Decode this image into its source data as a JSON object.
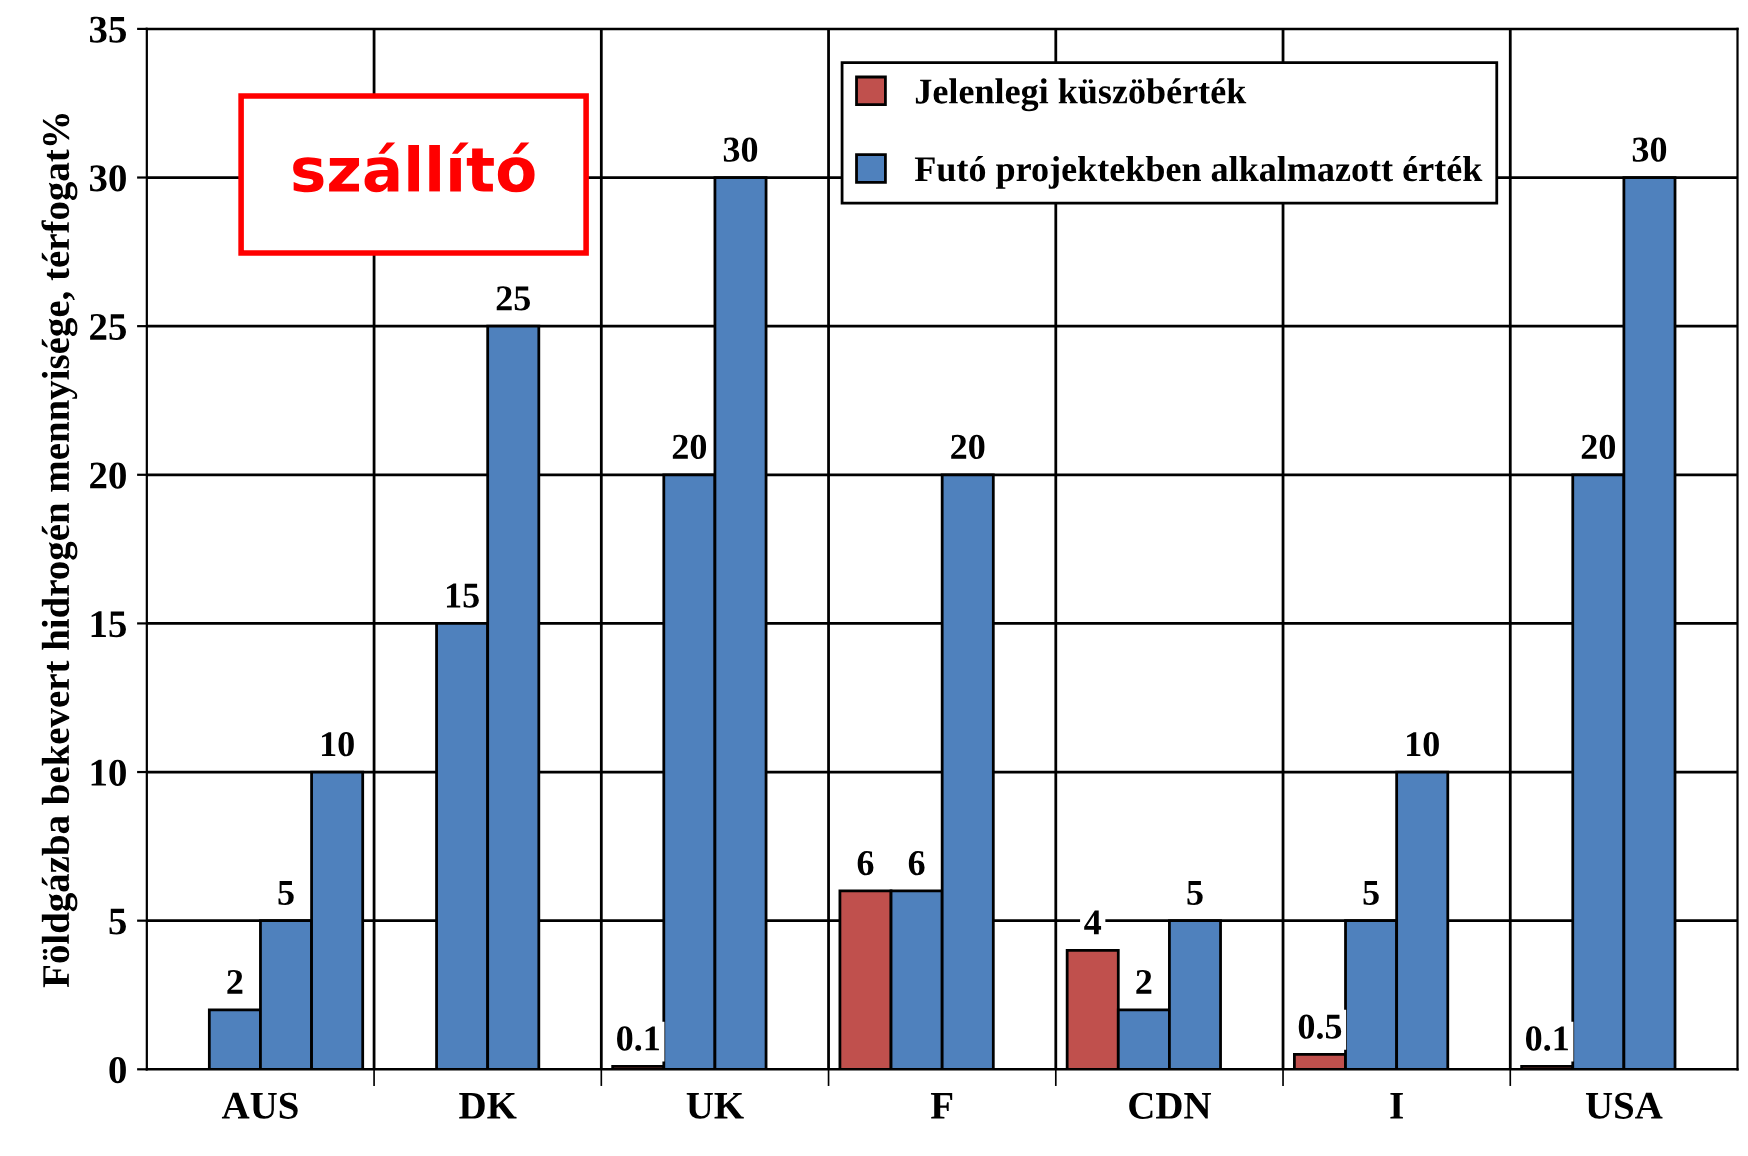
{
  "chart_data": {
    "type": "bar",
    "ylabel": "Földgázba bekevert hidrogén mennyisége, térfogat%",
    "categories": [
      "AUS",
      "DK",
      "UK",
      "F",
      "CDN",
      "I",
      "USA"
    ],
    "series": [
      {
        "name": "Jelenlegi küszöbérték",
        "color": "#c0504d",
        "values": [
          null,
          null,
          0.1,
          6,
          4,
          0.5,
          0.1
        ]
      },
      {
        "name": "Futó projektekben alkalmazott érték",
        "color": "#4f81bd",
        "values": [
          2,
          15,
          20,
          6,
          2,
          5,
          20
        ]
      },
      {
        "color": "#4f81bd",
        "values": [
          5,
          25,
          30,
          20,
          5,
          10,
          30
        ]
      },
      {
        "color": "#4f81bd",
        "values": [
          10,
          null,
          null,
          null,
          null,
          null,
          null
        ]
      }
    ],
    "ylim": [
      0,
      35
    ],
    "yticks": [
      0,
      5,
      10,
      15,
      20,
      25,
      30,
      35
    ],
    "grid": true,
    "legend": "top right",
    "data_labels": true,
    "annotations": [
      "szállító"
    ]
  }
}
